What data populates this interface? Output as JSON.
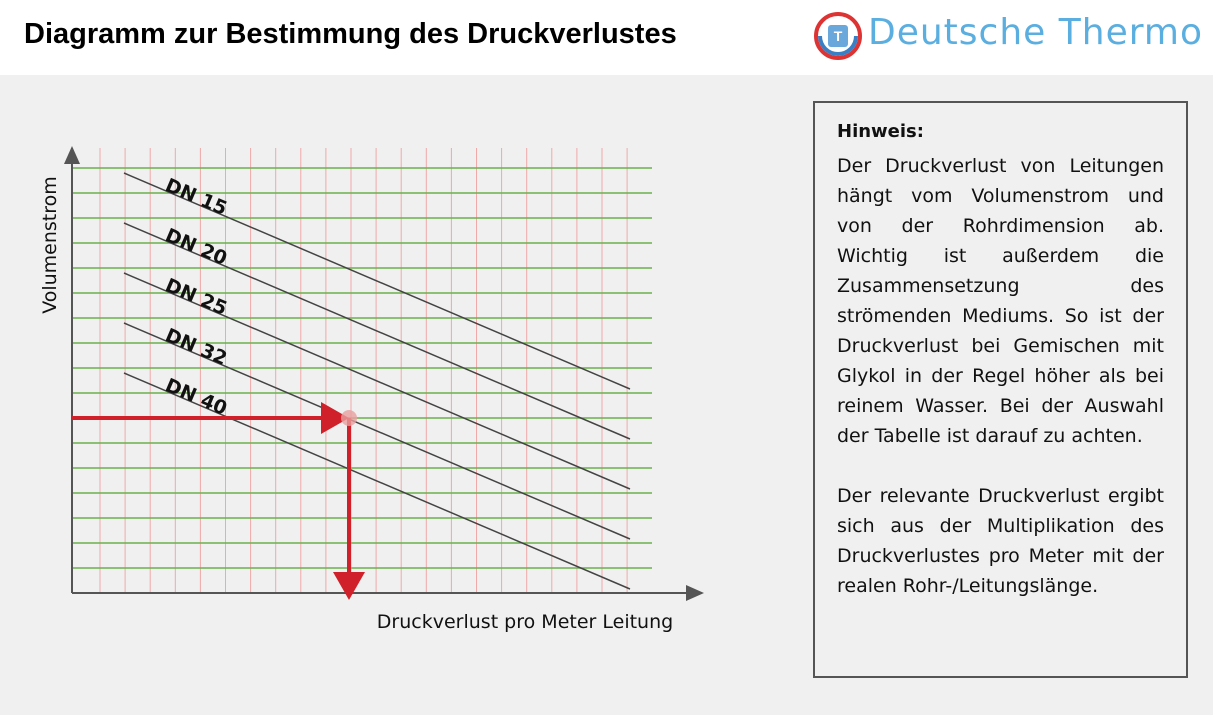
{
  "header": {
    "title": "Diagramm zur Bestimmung des Druckverlustes",
    "logo_text": "Deutsche Thermo"
  },
  "diagram": {
    "y_axis_label": "Volumenstrom",
    "x_axis_label": "Druckverlust pro Meter Leitung",
    "lines": [
      {
        "label": "DN 15"
      },
      {
        "label": "DN 20"
      },
      {
        "label": "DN 25"
      },
      {
        "label": "DN 32"
      },
      {
        "label": "DN 40"
      }
    ]
  },
  "note": {
    "title": "Hinweis:",
    "paragraphs": [
      "Der Druckverlust von Leitungen hängt vom Volumenstrom und von der Rohrdimension ab. Wichtig ist außerdem die Zusammensetzung des strömenden Mediums. So ist der Druckverlust bei Gemischen mit Glykol in der Regel höher als bei reinem Wasser. Bei der Auswahl der Tabelle ist darauf zu achten.",
      "Der relevante Druckverlust ergibt sich aus der Multiplikation des Druckverlustes pro Meter mit der realen Rohr-/Leitungslänge."
    ]
  }
}
